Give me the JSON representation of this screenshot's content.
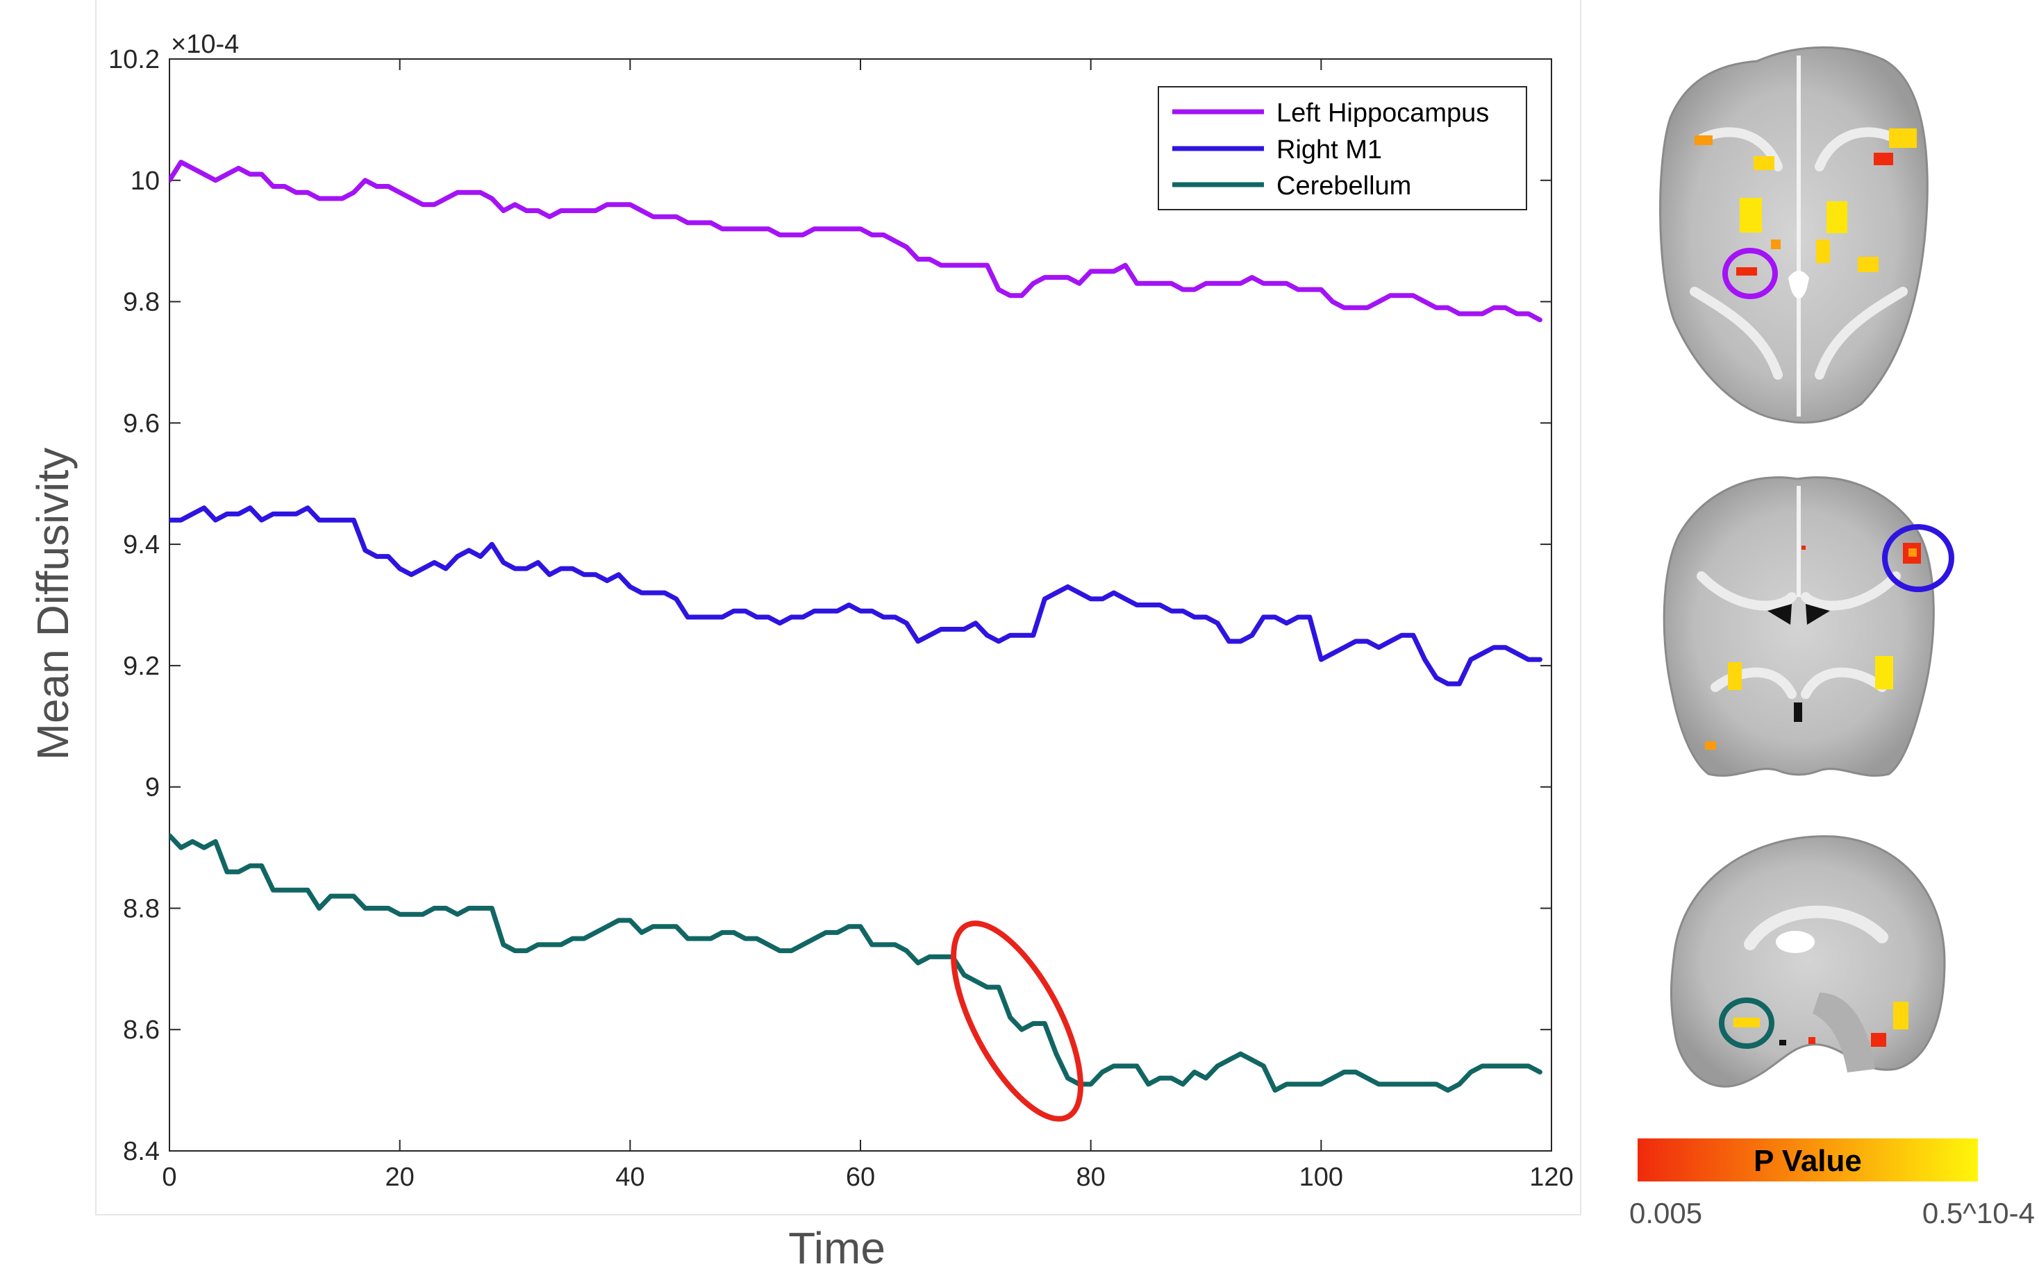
{
  "chart_data": {
    "type": "line",
    "xlabel": "Time",
    "ylabel": "Mean Diffusivity",
    "y_exponent": "×10-4",
    "xlim": [
      0,
      120
    ],
    "ylim": [
      8.4,
      10.2
    ],
    "xticks": [
      0,
      20,
      40,
      60,
      80,
      100,
      120
    ],
    "yticks": [
      8.4,
      8.6,
      8.8,
      9,
      9.2,
      9.4,
      9.6,
      9.8,
      10,
      10.2
    ],
    "grid": false,
    "legend_position": "top-right",
    "series": [
      {
        "name": "Left Hippocampus",
        "color": "#A313F5",
        "x": [
          0,
          1,
          2,
          3,
          4,
          5,
          6,
          7,
          8,
          9,
          10,
          11,
          12,
          13,
          14,
          15,
          16,
          17,
          18,
          19,
          20,
          21,
          22,
          23,
          24,
          25,
          26,
          27,
          28,
          29,
          30,
          31,
          32,
          33,
          34,
          35,
          36,
          37,
          38,
          39,
          40,
          41,
          42,
          43,
          44,
          45,
          46,
          47,
          48,
          49,
          50,
          51,
          52,
          53,
          54,
          55,
          56,
          57,
          58,
          59,
          60,
          61,
          62,
          63,
          64,
          65,
          66,
          67,
          68,
          69,
          70,
          71,
          72,
          73,
          74,
          75,
          76,
          77,
          78,
          79,
          80,
          81,
          82,
          83,
          84,
          85,
          86,
          87,
          88,
          89,
          90,
          91,
          92,
          93,
          94,
          95,
          96,
          97,
          98,
          99,
          100,
          101,
          102,
          103,
          104,
          105,
          106,
          107,
          108,
          109,
          110,
          111,
          112,
          113,
          114,
          115,
          116,
          117,
          118,
          119
        ],
        "values": [
          10.0,
          10.03,
          10.02,
          10.01,
          10.0,
          10.01,
          10.02,
          10.01,
          10.01,
          9.99,
          9.99,
          9.98,
          9.98,
          9.97,
          9.97,
          9.97,
          9.98,
          10.0,
          9.99,
          9.99,
          9.98,
          9.97,
          9.96,
          9.96,
          9.97,
          9.98,
          9.98,
          9.98,
          9.97,
          9.95,
          9.96,
          9.95,
          9.95,
          9.94,
          9.95,
          9.95,
          9.95,
          9.95,
          9.96,
          9.96,
          9.96,
          9.95,
          9.94,
          9.94,
          9.94,
          9.93,
          9.93,
          9.93,
          9.92,
          9.92,
          9.92,
          9.92,
          9.92,
          9.91,
          9.91,
          9.91,
          9.92,
          9.92,
          9.92,
          9.92,
          9.92,
          9.91,
          9.91,
          9.9,
          9.89,
          9.87,
          9.87,
          9.86,
          9.86,
          9.86,
          9.86,
          9.86,
          9.82,
          9.81,
          9.81,
          9.83,
          9.84,
          9.84,
          9.84,
          9.83,
          9.85,
          9.85,
          9.85,
          9.86,
          9.83,
          9.83,
          9.83,
          9.83,
          9.82,
          9.82,
          9.83,
          9.83,
          9.83,
          9.83,
          9.84,
          9.83,
          9.83,
          9.83,
          9.82,
          9.82,
          9.82,
          9.8,
          9.79,
          9.79,
          9.79,
          9.8,
          9.81,
          9.81,
          9.81,
          9.8,
          9.79,
          9.79,
          9.78,
          9.78,
          9.78,
          9.79,
          9.79,
          9.78,
          9.78,
          9.77
        ]
      },
      {
        "name": "Right M1",
        "color": "#2E14E0",
        "x": [
          0,
          1,
          2,
          3,
          4,
          5,
          6,
          7,
          8,
          9,
          10,
          11,
          12,
          13,
          14,
          15,
          16,
          17,
          18,
          19,
          20,
          21,
          22,
          23,
          24,
          25,
          26,
          27,
          28,
          29,
          30,
          31,
          32,
          33,
          34,
          35,
          36,
          37,
          38,
          39,
          40,
          41,
          42,
          43,
          44,
          45,
          46,
          47,
          48,
          49,
          50,
          51,
          52,
          53,
          54,
          55,
          56,
          57,
          58,
          59,
          60,
          61,
          62,
          63,
          64,
          65,
          66,
          67,
          68,
          69,
          70,
          71,
          72,
          73,
          74,
          75,
          76,
          77,
          78,
          79,
          80,
          81,
          82,
          83,
          84,
          85,
          86,
          87,
          88,
          89,
          90,
          91,
          92,
          93,
          94,
          95,
          96,
          97,
          98,
          99,
          100,
          101,
          102,
          103,
          104,
          105,
          106,
          107,
          108,
          109,
          110,
          111,
          112,
          113,
          114,
          115,
          116,
          117,
          118,
          119
        ],
        "values": [
          9.44,
          9.44,
          9.45,
          9.46,
          9.44,
          9.45,
          9.45,
          9.46,
          9.44,
          9.45,
          9.45,
          9.45,
          9.46,
          9.44,
          9.44,
          9.44,
          9.44,
          9.39,
          9.38,
          9.38,
          9.36,
          9.35,
          9.36,
          9.37,
          9.36,
          9.38,
          9.39,
          9.38,
          9.4,
          9.37,
          9.36,
          9.36,
          9.37,
          9.35,
          9.36,
          9.36,
          9.35,
          9.35,
          9.34,
          9.35,
          9.33,
          9.32,
          9.32,
          9.32,
          9.31,
          9.28,
          9.28,
          9.28,
          9.28,
          9.29,
          9.29,
          9.28,
          9.28,
          9.27,
          9.28,
          9.28,
          9.29,
          9.29,
          9.29,
          9.3,
          9.29,
          9.29,
          9.28,
          9.28,
          9.27,
          9.24,
          9.25,
          9.26,
          9.26,
          9.26,
          9.27,
          9.25,
          9.24,
          9.25,
          9.25,
          9.25,
          9.31,
          9.32,
          9.33,
          9.32,
          9.31,
          9.31,
          9.32,
          9.31,
          9.3,
          9.3,
          9.3,
          9.29,
          9.29,
          9.28,
          9.28,
          9.27,
          9.24,
          9.24,
          9.25,
          9.28,
          9.28,
          9.27,
          9.28,
          9.28,
          9.21,
          9.22,
          9.23,
          9.24,
          9.24,
          9.23,
          9.24,
          9.25,
          9.25,
          9.21,
          9.18,
          9.17,
          9.17,
          9.21,
          9.22,
          9.23,
          9.23,
          9.22,
          9.21,
          9.21
        ]
      },
      {
        "name": "Cerebellum",
        "color": "#116663",
        "x": [
          0,
          1,
          2,
          3,
          4,
          5,
          6,
          7,
          8,
          9,
          10,
          11,
          12,
          13,
          14,
          15,
          16,
          17,
          18,
          19,
          20,
          21,
          22,
          23,
          24,
          25,
          26,
          27,
          28,
          29,
          30,
          31,
          32,
          33,
          34,
          35,
          36,
          37,
          38,
          39,
          40,
          41,
          42,
          43,
          44,
          45,
          46,
          47,
          48,
          49,
          50,
          51,
          52,
          53,
          54,
          55,
          56,
          57,
          58,
          59,
          60,
          61,
          62,
          63,
          64,
          65,
          66,
          67,
          68,
          69,
          70,
          71,
          72,
          73,
          74,
          75,
          76,
          77,
          78,
          79,
          80,
          81,
          82,
          83,
          84,
          85,
          86,
          87,
          88,
          89,
          90,
          91,
          92,
          93,
          94,
          95,
          96,
          97,
          98,
          99,
          100,
          101,
          102,
          103,
          104,
          105,
          106,
          107,
          108,
          109,
          110,
          111,
          112,
          113,
          114,
          115,
          116,
          117,
          118,
          119
        ],
        "values": [
          8.92,
          8.9,
          8.91,
          8.9,
          8.91,
          8.86,
          8.86,
          8.87,
          8.87,
          8.83,
          8.83,
          8.83,
          8.83,
          8.8,
          8.82,
          8.82,
          8.82,
          8.8,
          8.8,
          8.8,
          8.79,
          8.79,
          8.79,
          8.8,
          8.8,
          8.79,
          8.8,
          8.8,
          8.8,
          8.74,
          8.73,
          8.73,
          8.74,
          8.74,
          8.74,
          8.75,
          8.75,
          8.76,
          8.77,
          8.78,
          8.78,
          8.76,
          8.77,
          8.77,
          8.77,
          8.75,
          8.75,
          8.75,
          8.76,
          8.76,
          8.75,
          8.75,
          8.74,
          8.73,
          8.73,
          8.74,
          8.75,
          8.76,
          8.76,
          8.77,
          8.77,
          8.74,
          8.74,
          8.74,
          8.73,
          8.71,
          8.72,
          8.72,
          8.72,
          8.69,
          8.68,
          8.67,
          8.67,
          8.62,
          8.6,
          8.61,
          8.61,
          8.56,
          8.52,
          8.51,
          8.51,
          8.53,
          8.54,
          8.54,
          8.54,
          8.51,
          8.52,
          8.52,
          8.51,
          8.53,
          8.52,
          8.54,
          8.55,
          8.56,
          8.55,
          8.54,
          8.5,
          8.51,
          8.51,
          8.51,
          8.51,
          8.52,
          8.53,
          8.53,
          8.52,
          8.51,
          8.51,
          8.51,
          8.51,
          8.51,
          8.51,
          8.5,
          8.51,
          8.53,
          8.54,
          8.54,
          8.54,
          8.54,
          8.54,
          8.53
        ]
      }
    ],
    "annotations": [
      {
        "type": "ellipse",
        "color": "#E8231A",
        "x_center": 73.6,
        "y_center": 8.614,
        "note": ""
      }
    ]
  },
  "brain_panel": {
    "views": [
      {
        "name": "axial",
        "circle_color": "#A313F5"
      },
      {
        "name": "coronal",
        "circle_color": "#2E14E0"
      },
      {
        "name": "sagittal",
        "circle_color": "#116663"
      }
    ],
    "colorbar": {
      "title": "P Value",
      "min_label": "0.005",
      "max_label": "0.5^10-4",
      "color_low": "#F02A0C",
      "color_high": "#FFF60A"
    }
  }
}
